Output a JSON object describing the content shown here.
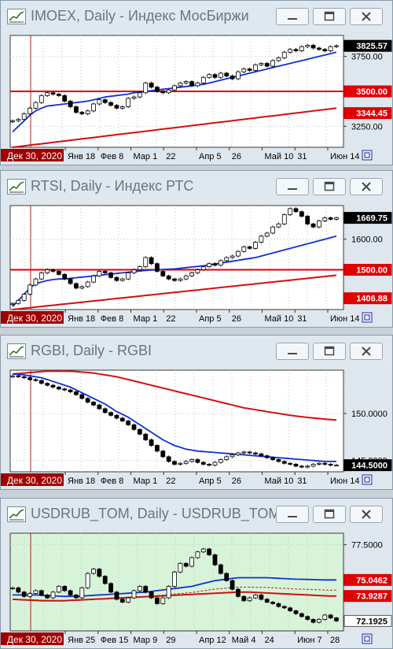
{
  "windows": [
    {
      "id": "imoex",
      "title": "IMOEX, Daily - Индекс МосБиржи",
      "panel_color": "#ffffff",
      "ylim": [
        3100,
        3900
      ],
      "y_ticks": [
        {
          "label": "3750.00",
          "value": 3750
        },
        {
          "label": "3250.00",
          "value": 3250
        }
      ],
      "price_tags": [
        {
          "label": "3825.57",
          "value": 3825.57,
          "bg": "#000000",
          "fg": "#ffffff"
        },
        {
          "label": "3500.00",
          "value": 3500,
          "bg": "#e00000",
          "fg": "#ffffff"
        },
        {
          "label": "3344.45",
          "value": 3344.45,
          "bg": "#e00000",
          "fg": "#ffffff"
        }
      ],
      "hline": 3500,
      "x_labels": [
        "Янв 18",
        "Фев 8",
        "Мар 1",
        "22",
        "Апр 5",
        "26",
        "Май 10",
        "31",
        "Июн 14"
      ],
      "date_tag": "Дек 30, 2020",
      "close": [
        3290,
        3300,
        3340,
        3380,
        3420,
        3470,
        3490,
        3480,
        3470,
        3430,
        3390,
        3350,
        3340,
        3360,
        3410,
        3440,
        3420,
        3400,
        3380,
        3390,
        3450,
        3460,
        3490,
        3560,
        3530,
        3500,
        3490,
        3510,
        3540,
        3560,
        3570,
        3540,
        3560,
        3600,
        3620,
        3600,
        3630,
        3610,
        3590,
        3640,
        3660,
        3650,
        3690,
        3700,
        3680,
        3720,
        3740,
        3780,
        3800,
        3790,
        3820,
        3830,
        3810,
        3800,
        3790,
        3820,
        3826
      ],
      "ma_fast": [
        3210,
        3250,
        3290,
        3330,
        3360,
        3380,
        3395,
        3400,
        3405,
        3410,
        3415,
        3420,
        3425,
        3430,
        3440,
        3450,
        3460,
        3465,
        3470,
        3475,
        3480,
        3490,
        3495,
        3500,
        3505,
        3510,
        3515,
        3520,
        3525,
        3530,
        3535,
        3540,
        3545,
        3550,
        3560,
        3570,
        3580,
        3590,
        3600,
        3610,
        3620,
        3630,
        3640,
        3650,
        3660,
        3670,
        3680,
        3690,
        3700,
        3710,
        3720,
        3730,
        3740,
        3750,
        3760,
        3770,
        3780
      ],
      "ma_slow": [
        3100,
        3105,
        3110,
        3115,
        3120,
        3125,
        3130,
        3135,
        3140,
        3145,
        3150,
        3155,
        3160,
        3165,
        3170,
        3175,
        3180,
        3185,
        3190,
        3195,
        3200,
        3205,
        3210,
        3215,
        3220,
        3225,
        3230,
        3235,
        3240,
        3245,
        3250,
        3255,
        3260,
        3265,
        3270,
        3275,
        3280,
        3285,
        3290,
        3295,
        3300,
        3305,
        3310,
        3315,
        3320,
        3325,
        3330,
        3335,
        3340,
        3345,
        3350,
        3355,
        3360,
        3365,
        3370,
        3375,
        3380
      ]
    },
    {
      "id": "rtsi",
      "title": "RTSI, Daily - Индекс РТС",
      "panel_color": "#ffffff",
      "ylim": [
        1370,
        1710
      ],
      "y_ticks": [
        {
          "label": "1600.00",
          "value": 1600
        }
      ],
      "price_tags": [
        {
          "label": "1669.75",
          "value": 1669.75,
          "bg": "#000000",
          "fg": "#ffffff"
        },
        {
          "label": "1500.00",
          "value": 1500,
          "bg": "#e00000",
          "fg": "#ffffff"
        },
        {
          "label": "1406.88",
          "value": 1406.88,
          "bg": "#e00000",
          "fg": "#ffffff"
        }
      ],
      "hline": 1500,
      "x_labels": [
        "Янв 18",
        "Фев 8",
        "Мар 1",
        "22",
        "Апр 5",
        "26",
        "Май 10",
        "31",
        "Июн 14"
      ],
      "date_tag": "Дек 30, 2020",
      "close": [
        1390,
        1400,
        1420,
        1450,
        1470,
        1490,
        1500,
        1495,
        1485,
        1470,
        1455,
        1440,
        1445,
        1460,
        1480,
        1495,
        1490,
        1475,
        1465,
        1470,
        1490,
        1500,
        1510,
        1540,
        1520,
        1495,
        1480,
        1470,
        1465,
        1470,
        1480,
        1490,
        1500,
        1510,
        1520,
        1515,
        1530,
        1540,
        1545,
        1560,
        1575,
        1570,
        1590,
        1610,
        1620,
        1640,
        1650,
        1680,
        1700,
        1690,
        1675,
        1650,
        1640,
        1660,
        1670,
        1665,
        1670
      ],
      "ma_fast": [
        1380,
        1400,
        1420,
        1440,
        1455,
        1460,
        1465,
        1468,
        1470,
        1470,
        1472,
        1474,
        1476,
        1478,
        1480,
        1482,
        1484,
        1486,
        1488,
        1490,
        1492,
        1494,
        1496,
        1498,
        1499,
        1500,
        1501,
        1502,
        1503,
        1505,
        1507,
        1509,
        1511,
        1513,
        1516,
        1519,
        1522,
        1525,
        1528,
        1531,
        1534,
        1537,
        1540,
        1545,
        1550,
        1555,
        1560,
        1565,
        1570,
        1575,
        1580,
        1585,
        1590,
        1595,
        1600,
        1605,
        1610
      ],
      "ma_slow": [
        1370,
        1372,
        1374,
        1376,
        1378,
        1380,
        1382,
        1384,
        1386,
        1388,
        1390,
        1392,
        1394,
        1396,
        1398,
        1400,
        1402,
        1404,
        1406,
        1408,
        1410,
        1412,
        1414,
        1416,
        1418,
        1420,
        1422,
        1424,
        1426,
        1428,
        1430,
        1432,
        1434,
        1436,
        1438,
        1440,
        1442,
        1444,
        1446,
        1448,
        1450,
        1452,
        1454,
        1456,
        1458,
        1460,
        1462,
        1464,
        1466,
        1468,
        1470,
        1472,
        1474,
        1476,
        1478,
        1480,
        1482
      ]
    },
    {
      "id": "rgbi",
      "title": "RGBI, Daily - RGBI",
      "panel_color": "#ffffff",
      "ylim": [
        143.8,
        154.6
      ],
      "y_ticks": [
        {
          "label": "150.0000",
          "value": 150
        },
        {
          "label": "145.0000",
          "value": 145
        }
      ],
      "price_tags": [
        {
          "label": "144.5000",
          "value": 144.5,
          "bg": "#000000",
          "fg": "#ffffff"
        }
      ],
      "hline": null,
      "x_labels": [
        "Янв 18",
        "Фев 8",
        "Мар 1",
        "22",
        "Апр 5",
        "26",
        "Май 10",
        "31",
        "Июн 14"
      ],
      "date_tag": "Дек 30, 2020",
      "close": [
        154.0,
        153.9,
        153.8,
        153.6,
        153.5,
        153.2,
        153.0,
        152.8,
        152.6,
        152.5,
        152.3,
        152.0,
        151.6,
        151.2,
        150.9,
        150.5,
        150.1,
        149.8,
        149.5,
        149.2,
        148.8,
        148.3,
        147.8,
        147.2,
        146.6,
        146.0,
        145.4,
        144.9,
        144.6,
        144.7,
        144.9,
        145.1,
        144.8,
        144.6,
        144.5,
        144.8,
        145.1,
        145.4,
        145.6,
        145.8,
        145.9,
        145.8,
        145.7,
        145.5,
        145.3,
        145.1,
        144.9,
        144.7,
        144.6,
        144.4,
        144.3,
        144.4,
        144.6,
        144.7,
        144.6,
        144.5,
        144.5
      ],
      "ma_fast": [
        154.2,
        154.15,
        154.1,
        154.0,
        153.9,
        153.8,
        153.6,
        153.4,
        153.2,
        153.0,
        152.8,
        152.5,
        152.2,
        151.9,
        151.6,
        151.3,
        151.0,
        150.6,
        150.2,
        149.9,
        149.6,
        149.2,
        148.8,
        148.4,
        148.0,
        147.6,
        147.2,
        146.9,
        146.6,
        146.4,
        146.2,
        146.1,
        146.0,
        145.95,
        145.9,
        145.85,
        145.8,
        145.75,
        145.7,
        145.65,
        145.6,
        145.55,
        145.5,
        145.45,
        145.4,
        145.35,
        145.3,
        145.25,
        145.2,
        145.15,
        145.1,
        145.05,
        145.0,
        144.95,
        144.9,
        144.9,
        144.9
      ],
      "ma_slow": [
        154.2,
        154.25,
        154.3,
        154.35,
        154.4,
        154.45,
        154.5,
        154.5,
        154.5,
        154.5,
        154.48,
        154.45,
        154.4,
        154.35,
        154.3,
        154.2,
        154.1,
        154.0,
        153.9,
        153.75,
        153.6,
        153.45,
        153.3,
        153.15,
        153.0,
        152.85,
        152.7,
        152.55,
        152.4,
        152.25,
        152.1,
        151.95,
        151.8,
        151.65,
        151.5,
        151.35,
        151.2,
        151.05,
        150.9,
        150.75,
        150.6,
        150.5,
        150.4,
        150.3,
        150.2,
        150.1,
        150.0,
        149.9,
        149.8,
        149.72,
        149.65,
        149.58,
        149.52,
        149.46,
        149.4,
        149.35,
        149.3
      ]
    },
    {
      "id": "usdrub",
      "title": "USDRUB_TOM, Daily - USDRUB_TOM",
      "panel_color": "#d8f4d8",
      "ylim": [
        71.5,
        78.3
      ],
      "y_ticks": [
        {
          "label": "77.5000",
          "value": 77.5
        }
      ],
      "price_tags": [
        {
          "label": "75.0462",
          "value": 75.0462,
          "bg": "#e00000",
          "fg": "#ffffff"
        },
        {
          "label": "73.9287",
          "value": 73.9287,
          "bg": "#e00000",
          "fg": "#ffffff"
        },
        {
          "label": "72.1925",
          "value": 72.1925,
          "bg": "#ffffff",
          "fg": "#000000"
        }
      ],
      "hline": null,
      "x_labels": [
        "Янв 25",
        "Фев 15",
        "Мар 9",
        "29",
        "Апр 12",
        "Май 4",
        "24",
        "Июн 7",
        "28"
      ],
      "date_tag": "Дек 30, 2020",
      "close": [
        74.5,
        74.2,
        73.9,
        74.1,
        74.3,
        74.0,
        73.8,
        74.2,
        74.6,
        74.3,
        74.0,
        73.8,
        74.5,
        75.5,
        75.8,
        75.3,
        74.8,
        74.2,
        73.7,
        73.5,
        73.8,
        74.3,
        74.6,
        74.2,
        73.8,
        73.4,
        73.8,
        74.6,
        75.6,
        76.2,
        76.0,
        76.6,
        77.0,
        77.2,
        76.8,
        76.1,
        75.5,
        75.0,
        74.4,
        73.9,
        73.6,
        73.8,
        74.0,
        73.7,
        73.5,
        73.4,
        73.2,
        73.1,
        72.9,
        72.7,
        72.5,
        72.3,
        72.1,
        72.3,
        72.6,
        72.4,
        72.2
      ],
      "ma_fast": [
        74.0,
        74.0,
        74.0,
        74.0,
        74.0,
        73.98,
        73.96,
        73.94,
        73.92,
        73.9,
        73.9,
        73.9,
        73.92,
        73.95,
        73.98,
        74.0,
        74.02,
        74.05,
        74.08,
        74.1,
        74.12,
        74.15,
        74.18,
        74.2,
        74.25,
        74.3,
        74.35,
        74.4,
        74.45,
        74.5,
        74.55,
        74.6,
        74.7,
        74.8,
        74.9,
        75.0,
        75.05,
        75.1,
        75.15,
        75.2,
        75.2,
        75.2,
        75.2,
        75.2,
        75.2,
        75.18,
        75.16,
        75.14,
        75.12,
        75.1,
        75.09,
        75.08,
        75.07,
        75.06,
        75.05,
        75.05,
        75.05
      ],
      "ma_slow": [
        73.7,
        73.68,
        73.66,
        73.64,
        73.62,
        73.6,
        73.6,
        73.6,
        73.6,
        73.6,
        73.62,
        73.64,
        73.66,
        73.68,
        73.7,
        73.72,
        73.74,
        73.76,
        73.78,
        73.8,
        73.82,
        73.84,
        73.86,
        73.88,
        73.9,
        73.92,
        73.94,
        73.96,
        73.98,
        74.0,
        74.02,
        74.04,
        74.06,
        74.08,
        74.1,
        74.12,
        74.14,
        74.16,
        74.18,
        74.2,
        74.2,
        74.2,
        74.18,
        74.16,
        74.14,
        74.12,
        74.1,
        74.08,
        74.06,
        74.04,
        74.02,
        74.0,
        73.98,
        73.96,
        73.94,
        73.93,
        73.93
      ]
    }
  ]
}
